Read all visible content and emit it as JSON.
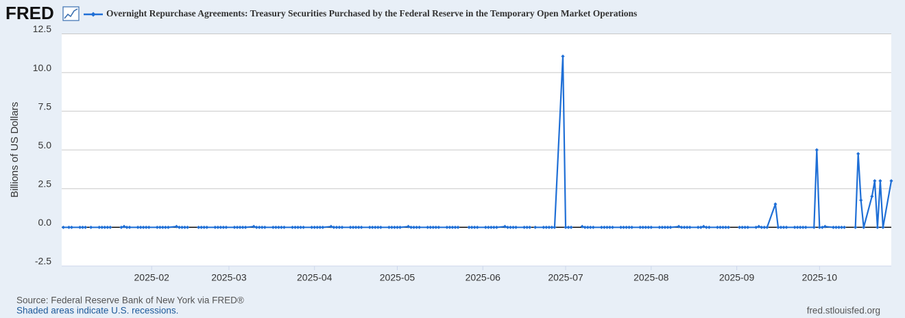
{
  "logo": "FRED",
  "chart_data": {
    "type": "line",
    "y_label": "Billions of US Dollars",
    "xlim": [
      -1.6,
      299
    ],
    "xticks": [
      {
        "value": 31,
        "label": "2025-02"
      },
      {
        "value": 59,
        "label": "2025-03"
      },
      {
        "value": 90,
        "label": "2025-04"
      },
      {
        "value": 120,
        "label": "2025-05"
      },
      {
        "value": 151,
        "label": "2025-06"
      },
      {
        "value": 181,
        "label": "2025-07"
      },
      {
        "value": 212,
        "label": "2025-08"
      },
      {
        "value": 243,
        "label": "2025-09"
      },
      {
        "value": 273,
        "label": "2025-10"
      }
    ],
    "ylim": [
      -2.5,
      12.5
    ],
    "yticks": [
      -2.5,
      {
        "value": 0,
        "label": "0.0"
      },
      2.5,
      {
        "value": 5,
        "label": "5.0"
      },
      7.5,
      {
        "value": 10,
        "label": "10.0"
      },
      12.5
    ],
    "grid": true,
    "x": [
      -1,
      1,
      2,
      5,
      6,
      7,
      8,
      9,
      12,
      13,
      14,
      15,
      16,
      19,
      20,
      21,
      22,
      23,
      26,
      27,
      28,
      29,
      30,
      33,
      34,
      35,
      36,
      37,
      40,
      41,
      42,
      43,
      44,
      47,
      48,
      49,
      50,
      51,
      54,
      55,
      56,
      57,
      58,
      61,
      62,
      63,
      64,
      65,
      68,
      69,
      70,
      71,
      72,
      75,
      76,
      77,
      78,
      79,
      82,
      83,
      84,
      85,
      86,
      89,
      90,
      91,
      92,
      93,
      96,
      97,
      98,
      99,
      100,
      103,
      104,
      105,
      106,
      107,
      110,
      111,
      112,
      113,
      114,
      117,
      118,
      119,
      120,
      121,
      124,
      125,
      126,
      127,
      128,
      131,
      132,
      133,
      134,
      135,
      138,
      139,
      140,
      141,
      142,
      145,
      146,
      147,
      148,
      149,
      152,
      153,
      154,
      155,
      156,
      159,
      160,
      161,
      162,
      163,
      166,
      167,
      168,
      169,
      170,
      173,
      174,
      175,
      176,
      177,
      180,
      181,
      182,
      183,
      184,
      187,
      188,
      189,
      190,
      191,
      194,
      195,
      196,
      197,
      198,
      201,
      202,
      203,
      204,
      205,
      208,
      209,
      210,
      211,
      212,
      215,
      216,
      217,
      218,
      219,
      222,
      223,
      224,
      225,
      226,
      229,
      230,
      231,
      232,
      233,
      236,
      237,
      238,
      239,
      240,
      243,
      244,
      245,
      246,
      247,
      250,
      251,
      252,
      253,
      254,
      257,
      258,
      259,
      260,
      261,
      264,
      265,
      266,
      267,
      268,
      271,
      272,
      273,
      274,
      275,
      278,
      279,
      280,
      281,
      282,
      285,
      286,
      287,
      288,
      289,
      292,
      293,
      294,
      295,
      296,
      299
    ],
    "series": [
      {
        "name": "Overnight Repurchase Agreements: Treasury Securities Purchased by the Federal Reserve in the Temporary Open Market Operations",
        "color": "#1f6fd6",
        "values": [
          0,
          0,
          0,
          0,
          0,
          0,
          null,
          0,
          0,
          0,
          0,
          0,
          0,
          null,
          0,
          0.05,
          0,
          0,
          0,
          0,
          0,
          0,
          0,
          0,
          0,
          0,
          0,
          0,
          0.05,
          0,
          0,
          0,
          0,
          null,
          0,
          0,
          0,
          0,
          0,
          0,
          0,
          0,
          0,
          0,
          0,
          0,
          0,
          0,
          0.05,
          0,
          0,
          0,
          0,
          0,
          0,
          0,
          0,
          0,
          0,
          0,
          0,
          0,
          0,
          0,
          0,
          0,
          0,
          0,
          0.05,
          0,
          0,
          0,
          0,
          0,
          0,
          0,
          0,
          0,
          0,
          0,
          0,
          0,
          0,
          0,
          0,
          0,
          0,
          0,
          0.05,
          0,
          0,
          0,
          0,
          0,
          0,
          0,
          0,
          0,
          0,
          0,
          0,
          0,
          0,
          null,
          0,
          0,
          0,
          0,
          0,
          0,
          0,
          0,
          0,
          0.05,
          0,
          0,
          0,
          0,
          0,
          0,
          0,
          null,
          0,
          0,
          0,
          0,
          0,
          0,
          11.05,
          0,
          0,
          0,
          null,
          0.05,
          0,
          0,
          0,
          0,
          0,
          0,
          0,
          0,
          0,
          0,
          0,
          0,
          0,
          0,
          0,
          0,
          0,
          0,
          0,
          0,
          0,
          0,
          0,
          0,
          0.05,
          0,
          0,
          0,
          0,
          0,
          0,
          0.05,
          0,
          0,
          0,
          0,
          0,
          0,
          0,
          null,
          0,
          0,
          0,
          0,
          0,
          0.05,
          0,
          0,
          0,
          1.5,
          0,
          0,
          0,
          0,
          0,
          0,
          0,
          0,
          0,
          0,
          5,
          0,
          0,
          0.05,
          0,
          0,
          0,
          0,
          0,
          null,
          0,
          4.75,
          1.75,
          0,
          2,
          3,
          0,
          3,
          0,
          3
        ]
      }
    ]
  },
  "footer": {
    "source": "Source: Federal Reserve Bank of New York via FRED®",
    "note": "Shaded areas indicate U.S. recessions.",
    "url": "fred.stlouisfed.org"
  }
}
